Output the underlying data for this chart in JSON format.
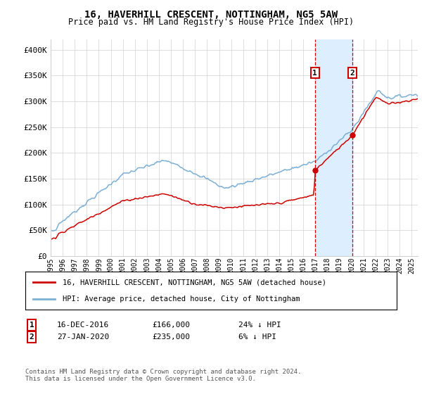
{
  "title": "16, HAVERHILL CRESCENT, NOTTINGHAM, NG5 5AW",
  "subtitle": "Price paid vs. HM Land Registry's House Price Index (HPI)",
  "hpi_label": "HPI: Average price, detached house, City of Nottingham",
  "property_label": "16, HAVERHILL CRESCENT, NOTTINGHAM, NG5 5AW (detached house)",
  "annotation1": {
    "num": "1",
    "date": "16-DEC-2016",
    "price": "£166,000",
    "pct": "24% ↓ HPI",
    "x_year": 2016.96
  },
  "annotation2": {
    "num": "2",
    "date": "27-JAN-2020",
    "price": "£235,000",
    "pct": "6% ↓ HPI",
    "x_year": 2020.07
  },
  "footer": "Contains HM Land Registry data © Crown copyright and database right 2024.\nThis data is licensed under the Open Government Licence v3.0.",
  "property_color": "#cc0000",
  "hpi_color": "#7bafd4",
  "highlight_color": "#ddeeff",
  "ylim": [
    0,
    420000
  ],
  "yticks": [
    0,
    50000,
    100000,
    150000,
    200000,
    250000,
    300000,
    350000,
    400000
  ],
  "ytick_labels": [
    "£0",
    "£50K",
    "£100K",
    "£150K",
    "£200K",
    "£250K",
    "£300K",
    "£350K",
    "£400K"
  ],
  "x_start": 1995.0,
  "x_end": 2025.5,
  "xtick_years": [
    1995,
    1996,
    1997,
    1998,
    1999,
    2000,
    2001,
    2002,
    2003,
    2004,
    2005,
    2006,
    2007,
    2008,
    2009,
    2010,
    2011,
    2012,
    2013,
    2014,
    2015,
    2016,
    2017,
    2018,
    2019,
    2020,
    2021,
    2022,
    2023,
    2024,
    2025
  ]
}
